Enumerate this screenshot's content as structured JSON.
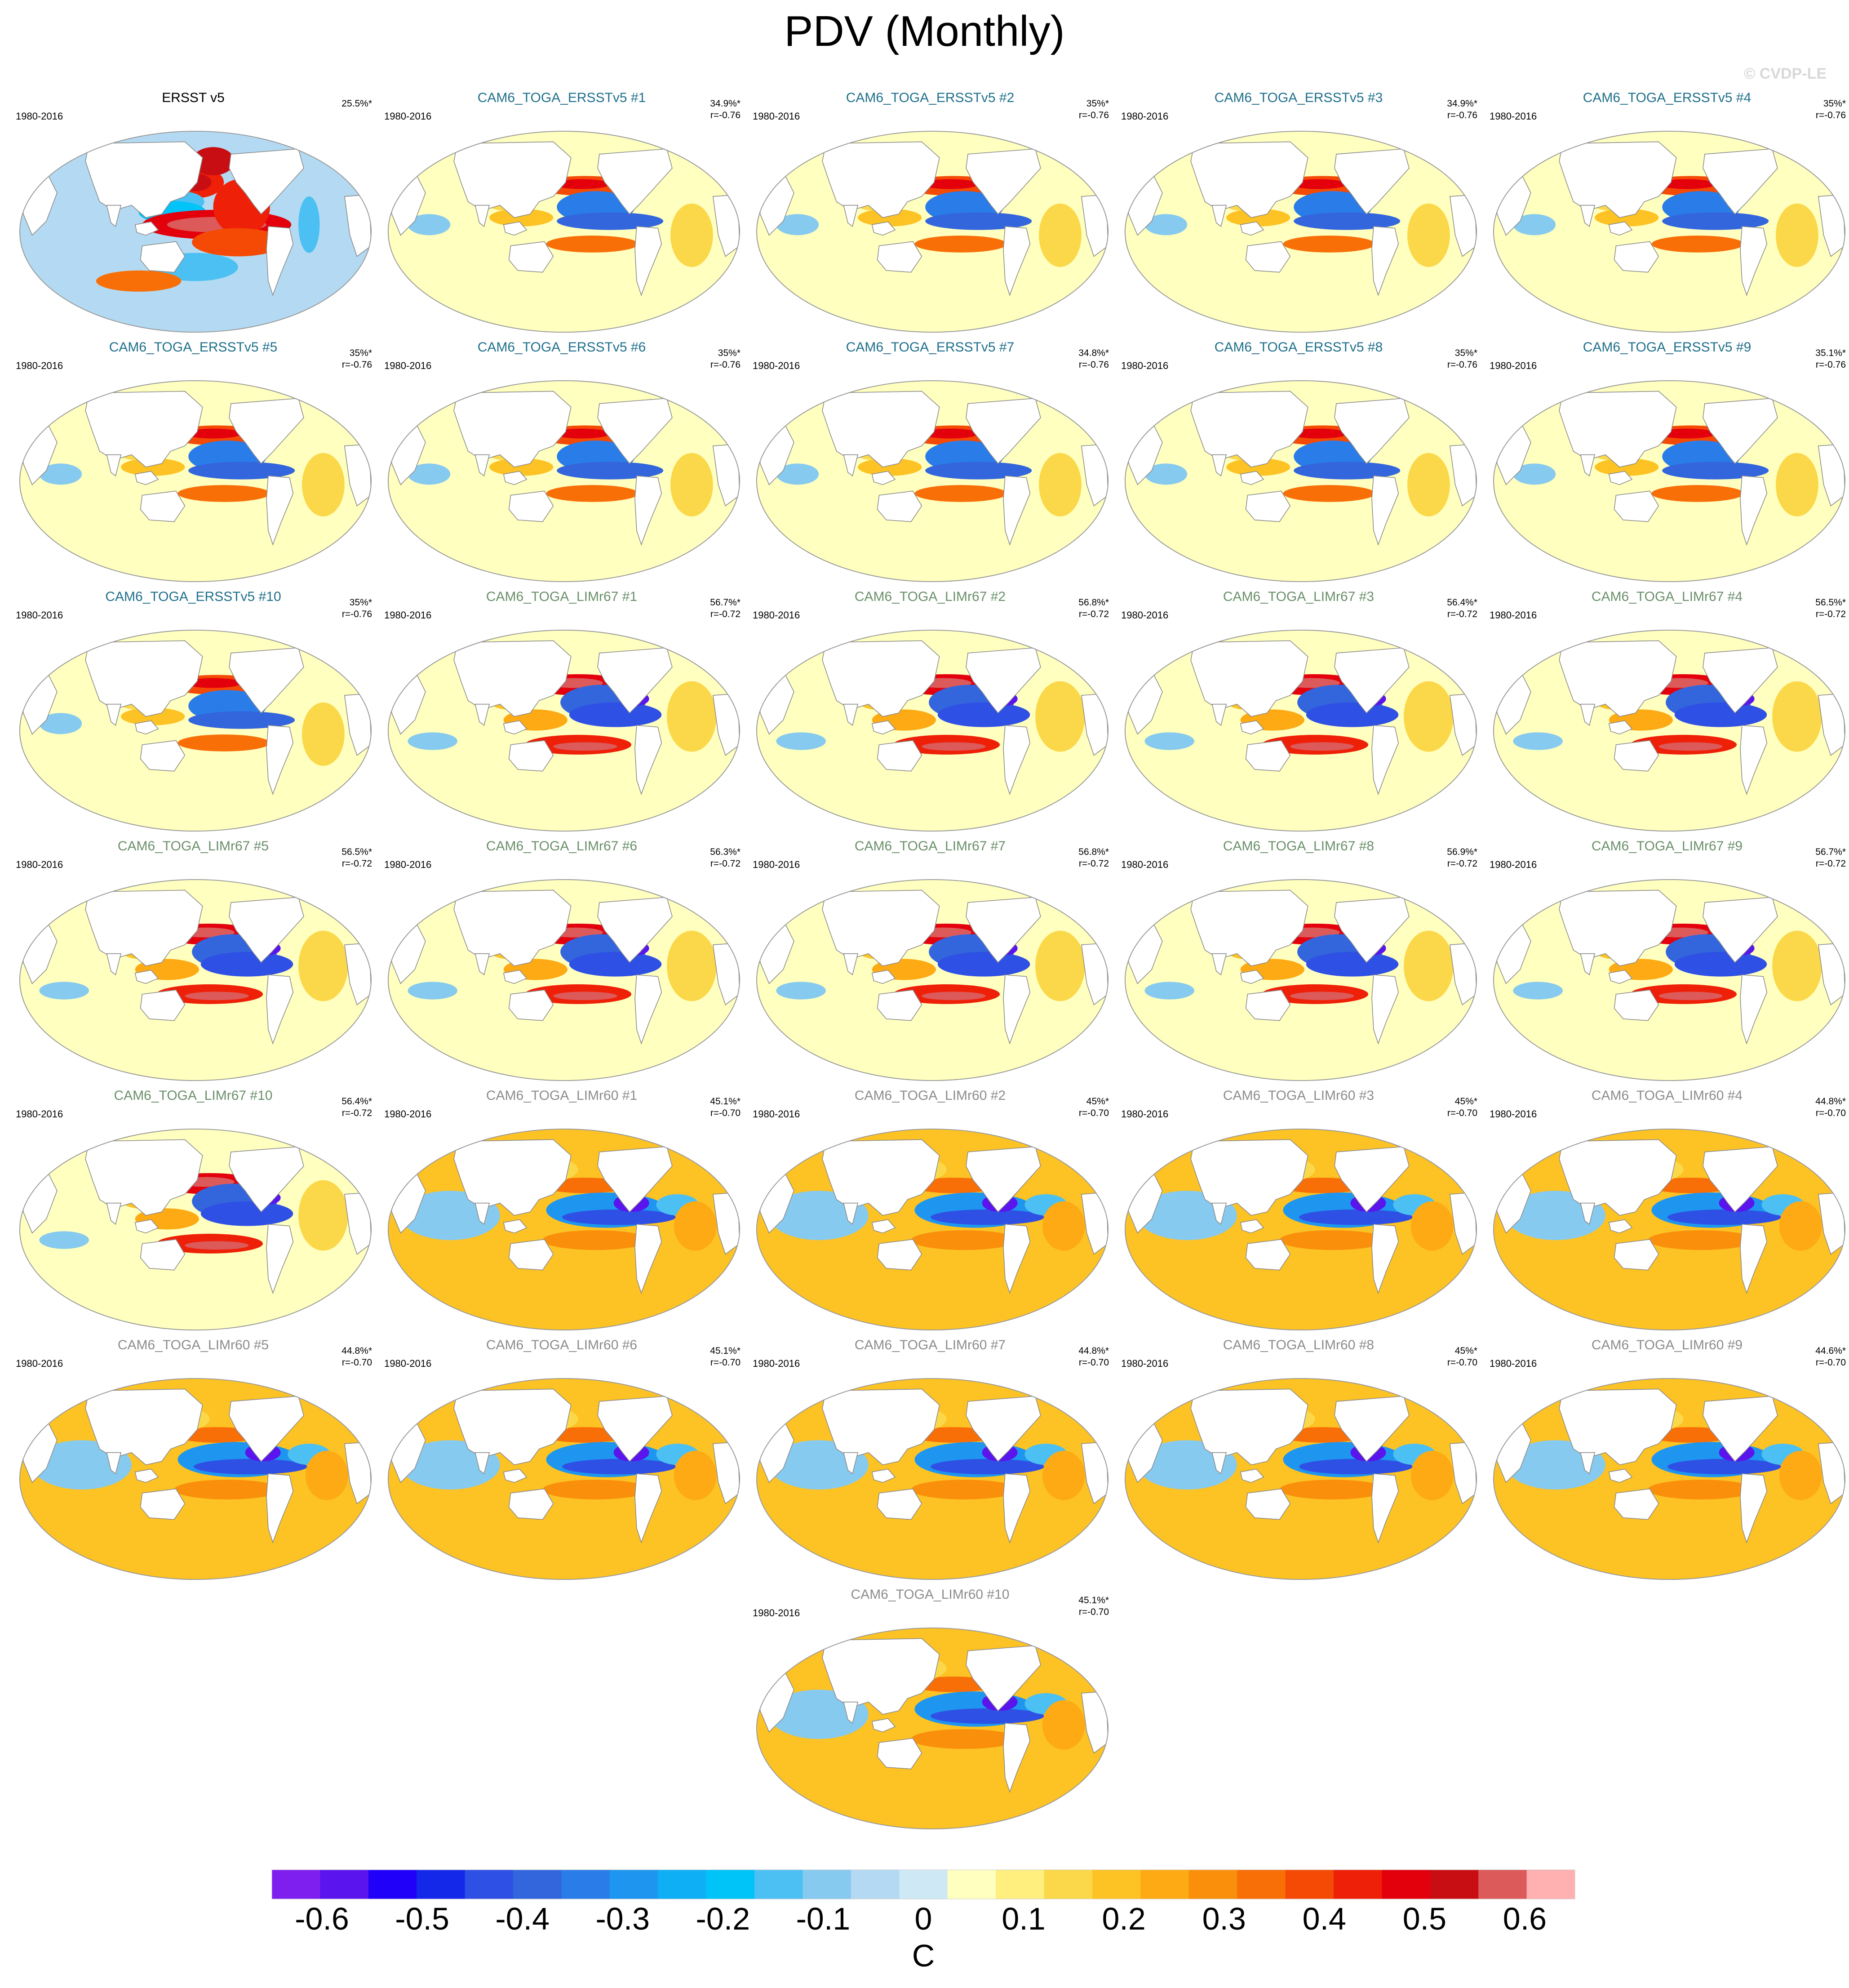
{
  "title": "PDV (Monthly)",
  "watermark": "© CVDP-LE",
  "colors": {
    "obs_title": "#000000",
    "ersst_title": "#1f6f8b",
    "limr67_title": "#6a8f6a",
    "limr60_title": "#8c8c8c",
    "coast": "#8a8a8a",
    "land": "#ffffff"
  },
  "chart_data": {
    "type": "heatmap",
    "units": "C",
    "colorbar": {
      "levels": [
        -0.65,
        -0.6,
        -0.55,
        -0.5,
        -0.45,
        -0.4,
        -0.35,
        -0.3,
        -0.25,
        -0.2,
        -0.15,
        -0.1,
        -0.05,
        0,
        0.05,
        0.1,
        0.15,
        0.2,
        0.25,
        0.3,
        0.35,
        0.4,
        0.45,
        0.5,
        0.55,
        0.6,
        0.65
      ],
      "colors": [
        "#7f1fef",
        "#5a14ee",
        "#2100fa",
        "#1428ea",
        "#2f50e4",
        "#3366dd",
        "#2a7de8",
        "#1e96f0",
        "#0faff5",
        "#00c3f8",
        "#4cc0f2",
        "#87caef",
        "#b3daf2",
        "#cfe8f5",
        "#ffffbf",
        "#ffef7f",
        "#fbd84a",
        "#fdc223",
        "#fdaa14",
        "#fa8f0c",
        "#f86f08",
        "#f44a06",
        "#ef2008",
        "#e3000c",
        "#c80e12",
        "#dc5a5a",
        "#ffb0b0"
      ],
      "tick_labels": [
        "-0.6",
        "-0.5",
        "-0.4",
        "-0.3",
        "-0.2",
        "-0.1",
        "0",
        "0.1",
        "0.2",
        "0.3",
        "0.4",
        "0.5",
        "0.6"
      ],
      "tick_values": [
        -0.6,
        -0.5,
        -0.4,
        -0.3,
        -0.2,
        -0.1,
        0,
        0.1,
        0.2,
        0.3,
        0.4,
        0.5,
        0.6
      ],
      "label": "C"
    },
    "panels": [
      {
        "name": "ERSST v5",
        "period": "1980-2016",
        "pct": "25.5%*",
        "r": "",
        "group": "obs"
      },
      {
        "name": "CAM6_TOGA_ERSSTv5 #1",
        "period": "1980-2016",
        "pct": "34.9%*",
        "r": "r=-0.76",
        "group": "ersst"
      },
      {
        "name": "CAM6_TOGA_ERSSTv5 #2",
        "period": "1980-2016",
        "pct": "35%*",
        "r": "r=-0.76",
        "group": "ersst"
      },
      {
        "name": "CAM6_TOGA_ERSSTv5 #3",
        "period": "1980-2016",
        "pct": "34.9%*",
        "r": "r=-0.76",
        "group": "ersst"
      },
      {
        "name": "CAM6_TOGA_ERSSTv5 #4",
        "period": "1980-2016",
        "pct": "35%*",
        "r": "r=-0.76",
        "group": "ersst"
      },
      {
        "name": "CAM6_TOGA_ERSSTv5 #5",
        "period": "1980-2016",
        "pct": "35%*",
        "r": "r=-0.76",
        "group": "ersst"
      },
      {
        "name": "CAM6_TOGA_ERSSTv5 #6",
        "period": "1980-2016",
        "pct": "35%*",
        "r": "r=-0.76",
        "group": "ersst"
      },
      {
        "name": "CAM6_TOGA_ERSSTv5 #7",
        "period": "1980-2016",
        "pct": "34.8%*",
        "r": "r=-0.76",
        "group": "ersst"
      },
      {
        "name": "CAM6_TOGA_ERSSTv5 #8",
        "period": "1980-2016",
        "pct": "35%*",
        "r": "r=-0.76",
        "group": "ersst"
      },
      {
        "name": "CAM6_TOGA_ERSSTv5 #9",
        "period": "1980-2016",
        "pct": "35.1%*",
        "r": "r=-0.76",
        "group": "ersst"
      },
      {
        "name": "CAM6_TOGA_ERSSTv5 #10",
        "period": "1980-2016",
        "pct": "35%*",
        "r": "r=-0.76",
        "group": "ersst"
      },
      {
        "name": "CAM6_TOGA_LIMr67 #1",
        "period": "1980-2016",
        "pct": "56.7%*",
        "r": "r=-0.72",
        "group": "limr67"
      },
      {
        "name": "CAM6_TOGA_LIMr67 #2",
        "period": "1980-2016",
        "pct": "56.8%*",
        "r": "r=-0.72",
        "group": "limr67"
      },
      {
        "name": "CAM6_TOGA_LIMr67 #3",
        "period": "1980-2016",
        "pct": "56.4%*",
        "r": "r=-0.72",
        "group": "limr67"
      },
      {
        "name": "CAM6_TOGA_LIMr67 #4",
        "period": "1980-2016",
        "pct": "56.5%*",
        "r": "r=-0.72",
        "group": "limr67"
      },
      {
        "name": "CAM6_TOGA_LIMr67 #5",
        "period": "1980-2016",
        "pct": "56.5%*",
        "r": "r=-0.72",
        "group": "limr67"
      },
      {
        "name": "CAM6_TOGA_LIMr67 #6",
        "period": "1980-2016",
        "pct": "56.3%*",
        "r": "r=-0.72",
        "group": "limr67"
      },
      {
        "name": "CAM6_TOGA_LIMr67 #7",
        "period": "1980-2016",
        "pct": "56.8%*",
        "r": "r=-0.72",
        "group": "limr67"
      },
      {
        "name": "CAM6_TOGA_LIMr67 #8",
        "period": "1980-2016",
        "pct": "56.9%*",
        "r": "r=-0.72",
        "group": "limr67"
      },
      {
        "name": "CAM6_TOGA_LIMr67 #9",
        "period": "1980-2016",
        "pct": "56.7%*",
        "r": "r=-0.72",
        "group": "limr67"
      },
      {
        "name": "CAM6_TOGA_LIMr67 #10",
        "period": "1980-2016",
        "pct": "56.4%*",
        "r": "r=-0.72",
        "group": "limr67"
      },
      {
        "name": "CAM6_TOGA_LIMr60 #1",
        "period": "1980-2016",
        "pct": "45.1%*",
        "r": "r=-0.70",
        "group": "limr60"
      },
      {
        "name": "CAM6_TOGA_LIMr60 #2",
        "period": "1980-2016",
        "pct": "45%*",
        "r": "r=-0.70",
        "group": "limr60"
      },
      {
        "name": "CAM6_TOGA_LIMr60 #3",
        "period": "1980-2016",
        "pct": "45%*",
        "r": "r=-0.70",
        "group": "limr60"
      },
      {
        "name": "CAM6_TOGA_LIMr60 #4",
        "period": "1980-2016",
        "pct": "44.8%*",
        "r": "r=-0.70",
        "group": "limr60"
      },
      {
        "name": "CAM6_TOGA_LIMr60 #5",
        "period": "1980-2016",
        "pct": "44.8%*",
        "r": "r=-0.70",
        "group": "limr60"
      },
      {
        "name": "CAM6_TOGA_LIMr60 #6",
        "period": "1980-2016",
        "pct": "45.1%*",
        "r": "r=-0.70",
        "group": "limr60"
      },
      {
        "name": "CAM6_TOGA_LIMr60 #7",
        "period": "1980-2016",
        "pct": "44.8%*",
        "r": "r=-0.70",
        "group": "limr60"
      },
      {
        "name": "CAM6_TOGA_LIMr60 #8",
        "period": "1980-2016",
        "pct": "45%*",
        "r": "r=-0.70",
        "group": "limr60"
      },
      {
        "name": "CAM6_TOGA_LIMr60 #9",
        "period": "1980-2016",
        "pct": "44.6%*",
        "r": "r=-0.70",
        "group": "limr60"
      },
      {
        "name": "CAM6_TOGA_LIMr60 #10",
        "period": "1980-2016",
        "pct": "45.1%*",
        "r": "r=-0.70",
        "group": "limr60"
      }
    ]
  }
}
